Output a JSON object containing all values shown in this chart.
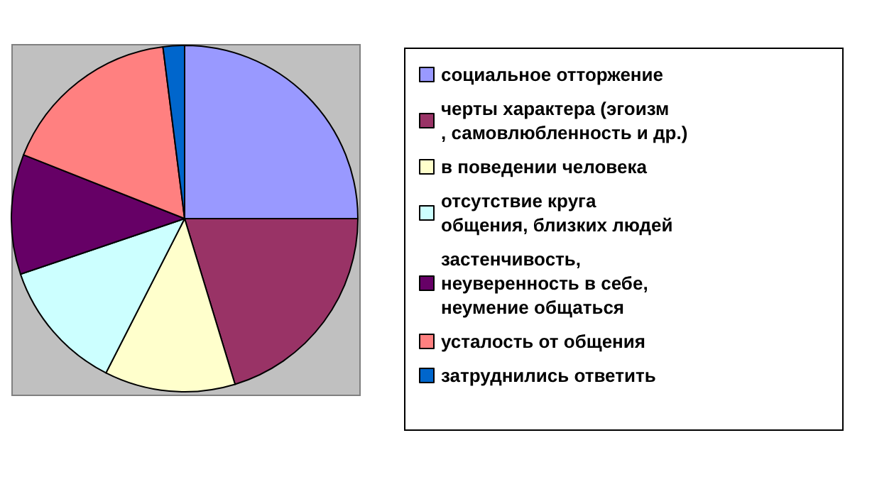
{
  "chart_data": {
    "type": "pie",
    "categories": [
      "социальное отторжение",
      "черты характера (эгоизм, самовлюбленность и др.)",
      "в поведении человека",
      "отсутствие круга общения, близких людей",
      "застенчивость, неуверенность в себе, неумение общаться",
      "усталость от общения",
      "затруднились ответить"
    ],
    "values": [
      25,
      20.3,
      12.2,
      12.3,
      11.2,
      17,
      2
    ],
    "colors": [
      "#9999ff",
      "#993366",
      "#ffffcc",
      "#ccffff",
      "#660066",
      "#ff8080",
      "#0066cc"
    ],
    "legend": "right"
  }
}
